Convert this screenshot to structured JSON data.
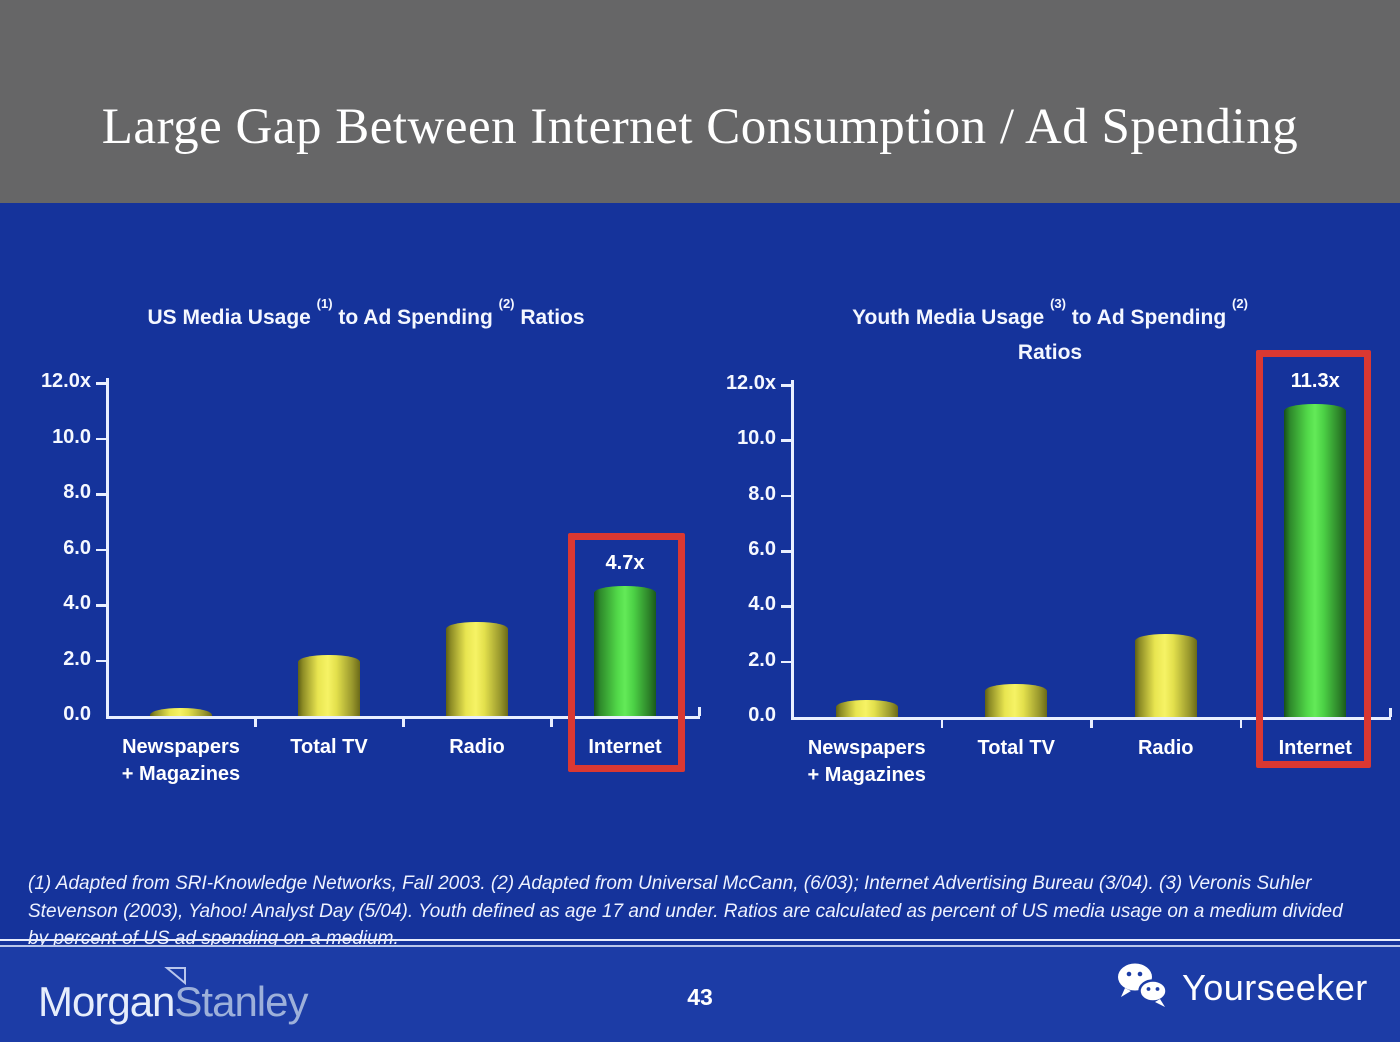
{
  "slide": {
    "title": "Large Gap Between Internet Consumption / Ad Spending"
  },
  "colors": {
    "header_gray": "#666667",
    "background_blue": "#15339b",
    "footer_blue": "#1c3ca6",
    "bar_yellow": "#f2ef5e",
    "bar_green": "#5ae24f",
    "highlight_red": "#da3832",
    "axis_white": "#e9efff"
  },
  "chart_data": [
    {
      "type": "bar",
      "title": "US Media Usage (1) to Ad Spending (2) Ratios",
      "heading": {
        "t1": "US Media Usage",
        "s1": "(1)",
        "t2": "to Ad Spending",
        "s2": "(2)",
        "t3": "Ratios"
      },
      "categories": [
        "Newspapers + Magazines",
        "Total TV",
        "Radio",
        "Internet"
      ],
      "categories_multiline": [
        [
          "Newspapers",
          "+ Magazines"
        ],
        [
          "Total TV"
        ],
        [
          "Radio"
        ],
        [
          "Internet"
        ]
      ],
      "values": [
        0.3,
        2.2,
        3.4,
        4.7
      ],
      "value_labels": {
        "3": "4.7x"
      },
      "highlight_index": 3,
      "yticks": [
        "12.0x",
        "10.0",
        "8.0",
        "6.0",
        "4.0",
        "2.0",
        "0.0"
      ],
      "ylim": [
        0,
        12
      ],
      "xlabel": "",
      "ylabel": "",
      "grid": false,
      "legend": "none"
    },
    {
      "type": "bar",
      "title": "Youth Media Usage (3) to Ad Spending (2) Ratios",
      "heading": {
        "t1": "Youth Media Usage",
        "s1": "(3)",
        "t2": "to Ad Spending",
        "s2": "(2)",
        "line2": "Ratios"
      },
      "categories": [
        "Newspapers + Magazines",
        "Total TV",
        "Radio",
        "Internet"
      ],
      "categories_multiline": [
        [
          "Newspapers",
          "+ Magazines"
        ],
        [
          "Total TV"
        ],
        [
          "Radio"
        ],
        [
          "Internet"
        ]
      ],
      "values": [
        0.6,
        1.2,
        3.0,
        11.3
      ],
      "value_labels": {
        "3": "11.3x"
      },
      "highlight_index": 3,
      "yticks": [
        "12.0x",
        "10.0",
        "8.0",
        "6.0",
        "4.0",
        "2.0",
        "0.0"
      ],
      "ylim": [
        0,
        12
      ],
      "xlabel": "",
      "ylabel": "",
      "grid": false,
      "legend": "none"
    }
  ],
  "footnote": {
    "lines": [
      "(1) Adapted from SRI-Knowledge Networks, Fall 2003.  (2) Adapted from Universal McCann, (6/03); Internet Advertising Bureau (3/04). (3) Veronis Suhler",
      "Stevenson (2003), Yahoo! Analyst Day (5/04).  Youth defined as age 17 and under.  Ratios are calculated as percent of US media usage on a medium divided",
      "by percent of US ad spending on a medium."
    ]
  },
  "footer": {
    "brand_part1": "Morgan",
    "brand_part2": "Stanley",
    "page_number": "43",
    "partner_name": "Yourseeker"
  }
}
